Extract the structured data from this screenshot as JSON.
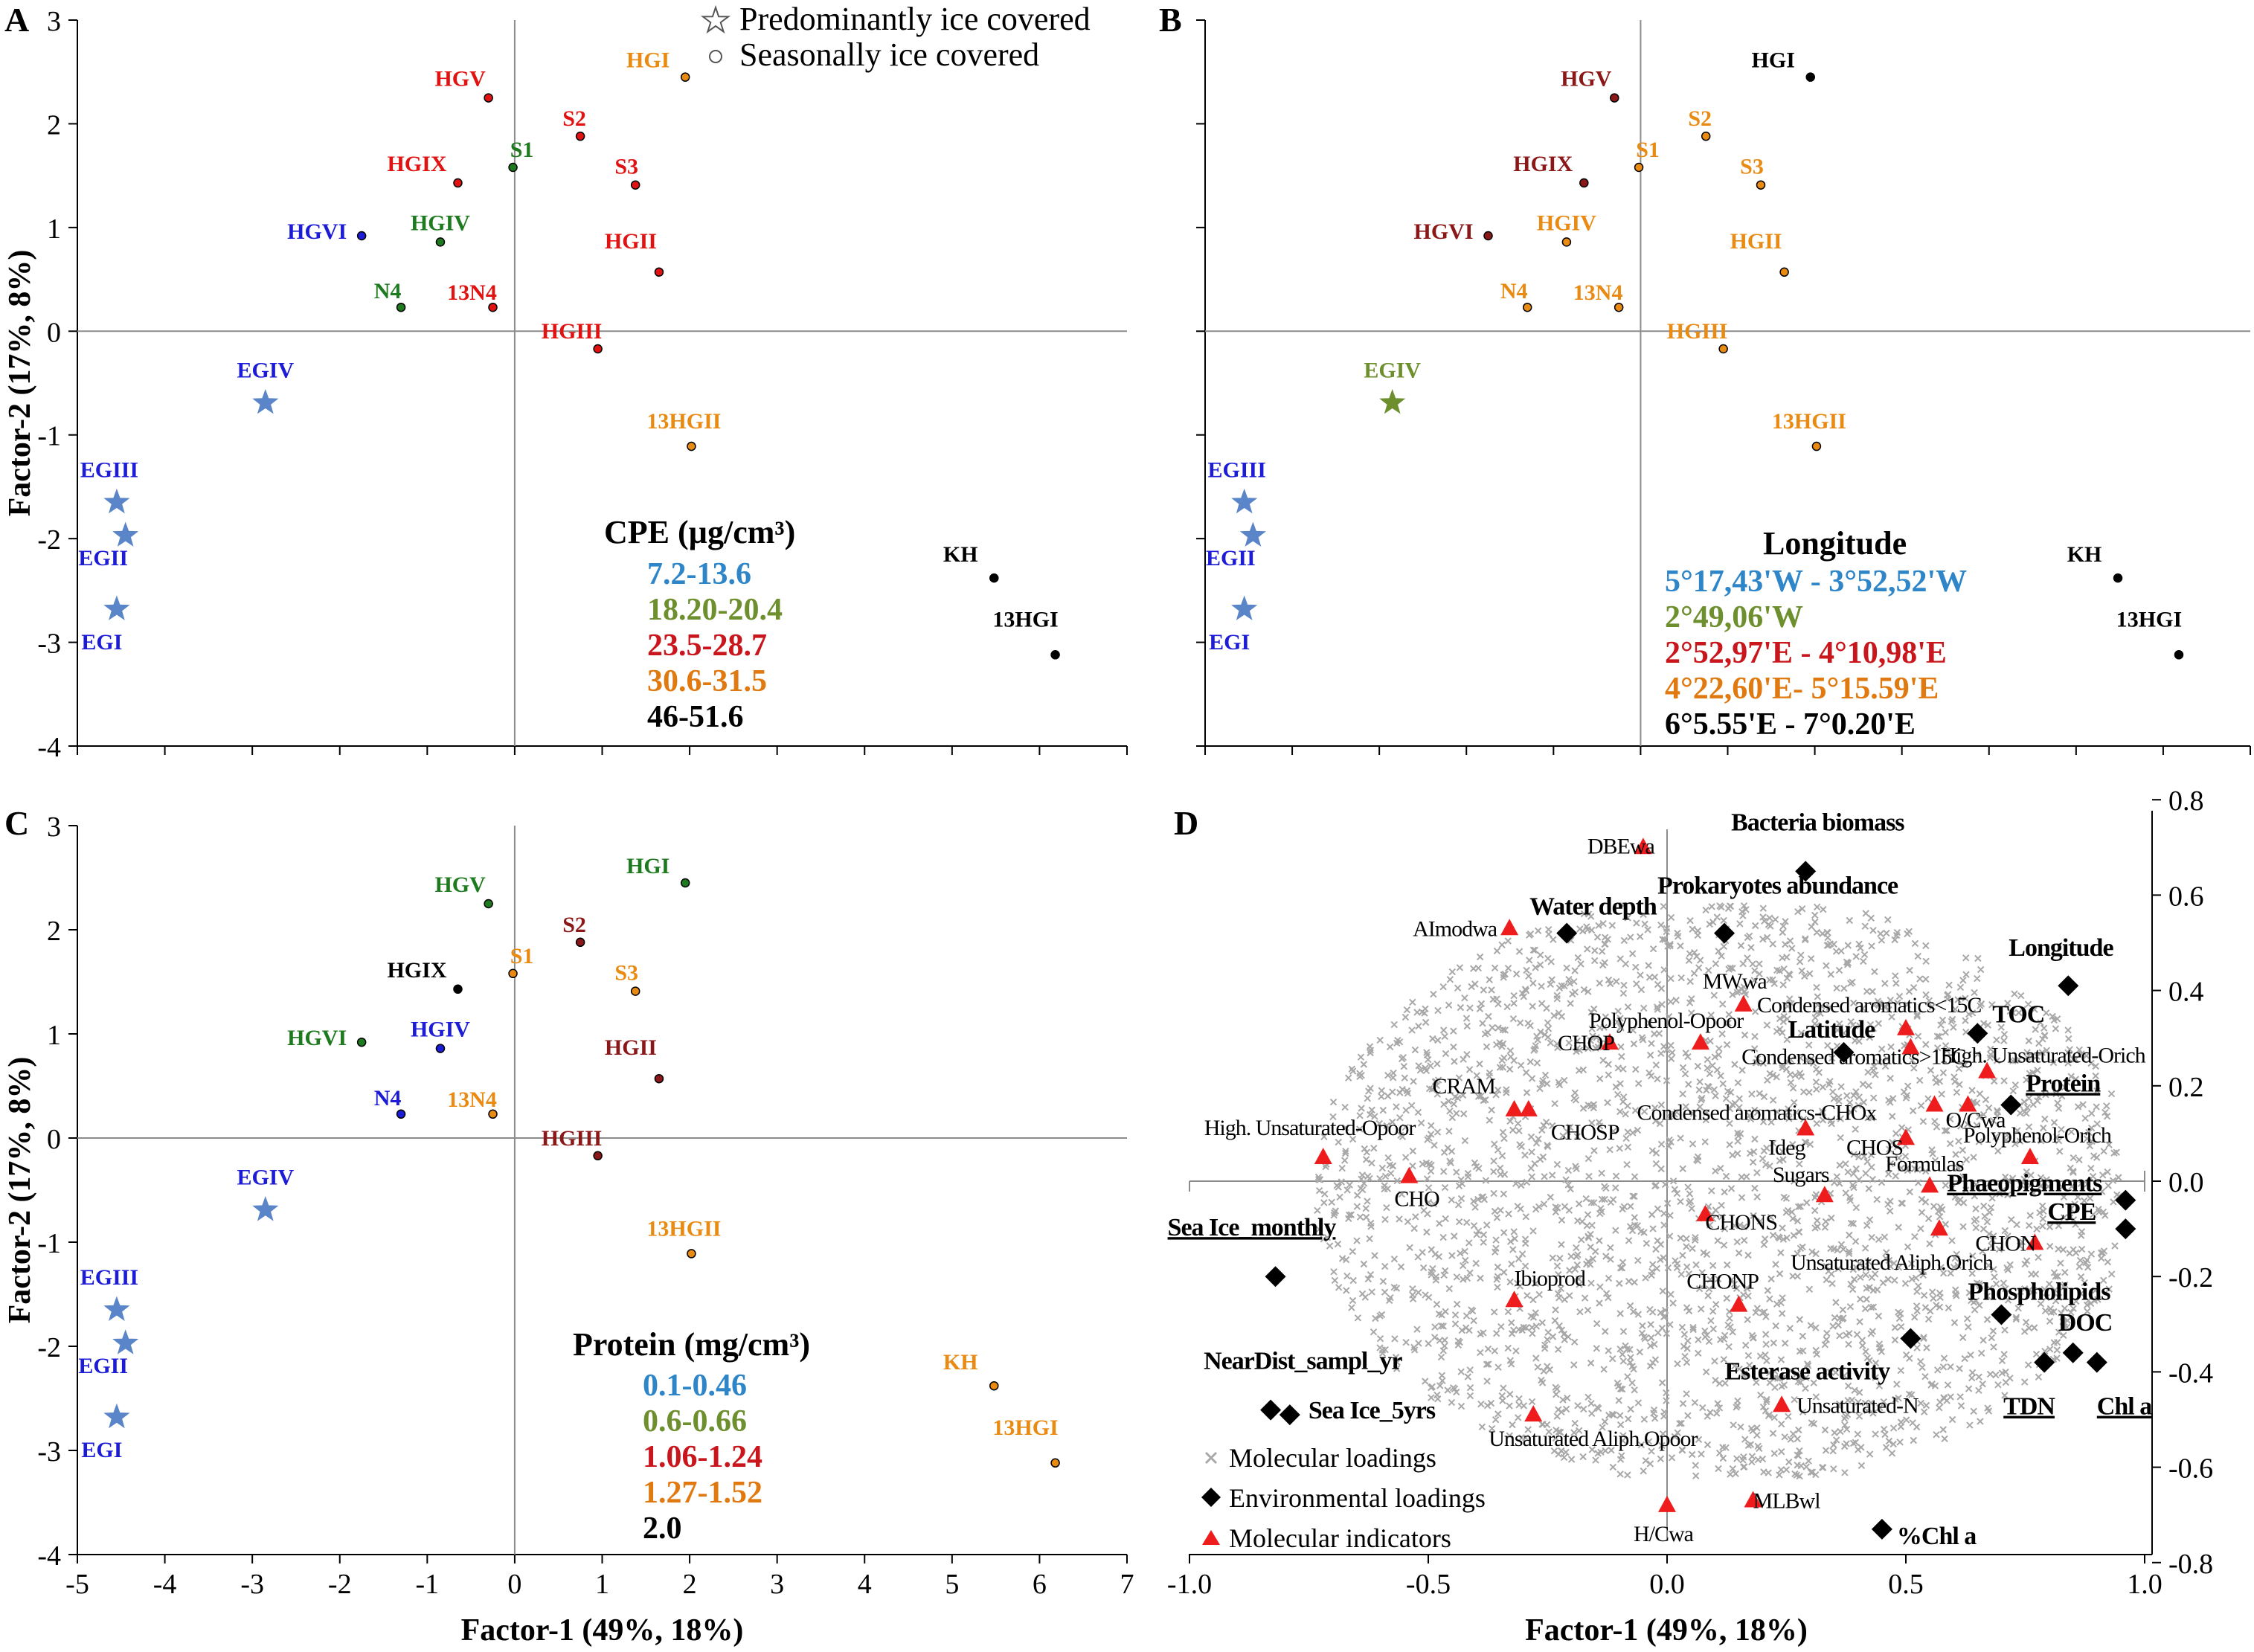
{
  "colors": {
    "blue": "#1c1cd6",
    "green": "#1e7a1e",
    "red": "#e01212",
    "orange": "#e98a12",
    "black": "#000000",
    "darkred": "#8b1818",
    "star": "#5a85c8",
    "olive": "#6e8f2e",
    "legend_blue": "#2e86c8",
    "legend_green": "#6e8f2e",
    "legend_red": "#c8161c",
    "legend_orange": "#e07a10",
    "cloud": "#a8a8a8",
    "triangle": "#ee1c1c",
    "diamond": "#000000"
  },
  "chart_data": [
    {
      "panel": "A",
      "type": "scatter",
      "xlim": [
        -5,
        7
      ],
      "ylim": [
        -4,
        3
      ],
      "xticks": [
        "-5",
        "-4",
        "-3",
        "-2",
        "-1",
        "0",
        "1",
        "2",
        "3",
        "4",
        "5",
        "6",
        "7"
      ],
      "yticks": [
        "3",
        "2",
        "1",
        "0",
        "-1",
        "-2",
        "-3",
        "-4"
      ],
      "ylabel": "Factor-2 (17%, 8%)",
      "xlabel": "",
      "shape_legend": {
        "star_label": "Predominantly ice covered",
        "circle_label": "Seasonally ice covered"
      },
      "legend_title": "CPE (µg/cm³)",
      "legend": [
        {
          "label": "7.2-13.6",
          "color": "legend_blue"
        },
        {
          "label": "18.20-20.4",
          "color": "legend_green"
        },
        {
          "label": "23.5-28.7",
          "color": "legend_red"
        },
        {
          "label": "30.6-31.5",
          "color": "legend_orange"
        },
        {
          "label": "46-51.6",
          "color": "legend_black"
        }
      ],
      "points": [
        {
          "label": "HGV",
          "x": -0.3,
          "y": 2.25,
          "shape": "circle",
          "color": "red"
        },
        {
          "label": "HGI",
          "x": 1.95,
          "y": 2.45,
          "shape": "circle",
          "color": "orange"
        },
        {
          "label": "S2",
          "x": 0.75,
          "y": 1.88,
          "shape": "circle",
          "color": "red"
        },
        {
          "label": "S1",
          "x": -0.02,
          "y": 1.58,
          "shape": "circle",
          "color": "green"
        },
        {
          "label": "HGIX",
          "x": -0.65,
          "y": 1.43,
          "shape": "circle",
          "color": "red"
        },
        {
          "label": "S3",
          "x": 1.38,
          "y": 1.41,
          "shape": "circle",
          "color": "red"
        },
        {
          "label": "HGVI",
          "x": -1.75,
          "y": 0.92,
          "shape": "circle",
          "color": "blue"
        },
        {
          "label": "HGIV",
          "x": -0.85,
          "y": 0.86,
          "shape": "circle",
          "color": "green"
        },
        {
          "label": "HGII",
          "x": 1.65,
          "y": 0.57,
          "shape": "circle",
          "color": "red"
        },
        {
          "label": "N4",
          "x": -1.3,
          "y": 0.23,
          "shape": "circle",
          "color": "green"
        },
        {
          "label": "13N4",
          "x": -0.25,
          "y": 0.23,
          "shape": "circle",
          "color": "red"
        },
        {
          "label": "HGIII",
          "x": 0.95,
          "y": -0.17,
          "shape": "circle",
          "color": "red"
        },
        {
          "label": "EGIV",
          "x": -2.85,
          "y": -0.69,
          "shape": "star",
          "color": "blue"
        },
        {
          "label": "13HGII",
          "x": 2.02,
          "y": -1.11,
          "shape": "circle",
          "color": "orange"
        },
        {
          "label": "EGIII",
          "x": -4.55,
          "y": -1.65,
          "shape": "star",
          "color": "blue"
        },
        {
          "label": "EGII",
          "x": -4.45,
          "y": -1.97,
          "shape": "star",
          "color": "blue"
        },
        {
          "label": "EGI",
          "x": -4.55,
          "y": -2.68,
          "shape": "star",
          "color": "blue"
        },
        {
          "label": "KH",
          "x": 5.48,
          "y": -2.38,
          "shape": "circle",
          "color": "black"
        },
        {
          "label": "13HGI",
          "x": 6.18,
          "y": -3.12,
          "shape": "circle",
          "color": "black"
        }
      ]
    },
    {
      "panel": "B",
      "type": "scatter",
      "xlim": [
        -5,
        7
      ],
      "ylim": [
        -4,
        3
      ],
      "legend_title": "Longitude",
      "legend": [
        {
          "label": "5°17,43'W - 3°52,52'W",
          "color": "legend_blue"
        },
        {
          "label": "2°49,06'W",
          "color": "legend_green"
        },
        {
          "label": "2°52,97'E - 4°10,98'E",
          "color": "legend_red"
        },
        {
          "label": "4°22,60'E- 5°15.59'E",
          "color": "legend_orange"
        },
        {
          "label": "6°5.55'E - 7°0.20'E",
          "color": "legend_black"
        }
      ],
      "points": [
        {
          "label": "HGI",
          "x": 1.95,
          "y": 2.45,
          "shape": "circle",
          "color": "black"
        },
        {
          "label": "HGV",
          "x": -0.3,
          "y": 2.25,
          "shape": "circle",
          "color": "darkred"
        },
        {
          "label": "S2",
          "x": 0.75,
          "y": 1.88,
          "shape": "circle",
          "color": "orange"
        },
        {
          "label": "S1",
          "x": -0.02,
          "y": 1.58,
          "shape": "circle",
          "color": "orange"
        },
        {
          "label": "HGIX",
          "x": -0.65,
          "y": 1.43,
          "shape": "circle",
          "color": "darkred"
        },
        {
          "label": "S3",
          "x": 1.38,
          "y": 1.41,
          "shape": "circle",
          "color": "orange"
        },
        {
          "label": "HGVI",
          "x": -1.75,
          "y": 0.92,
          "shape": "circle",
          "color": "darkred"
        },
        {
          "label": "HGIV",
          "x": -0.85,
          "y": 0.86,
          "shape": "circle",
          "color": "orange"
        },
        {
          "label": "HGII",
          "x": 1.65,
          "y": 0.57,
          "shape": "circle",
          "color": "orange"
        },
        {
          "label": "N4",
          "x": -1.3,
          "y": 0.23,
          "shape": "circle",
          "color": "orange"
        },
        {
          "label": "13N4",
          "x": -0.25,
          "y": 0.23,
          "shape": "circle",
          "color": "orange"
        },
        {
          "label": "HGIII",
          "x": 0.95,
          "y": -0.17,
          "shape": "circle",
          "color": "orange"
        },
        {
          "label": "EGIV",
          "x": -2.85,
          "y": -0.69,
          "shape": "star",
          "color": "olive"
        },
        {
          "label": "13HGII",
          "x": 2.02,
          "y": -1.11,
          "shape": "circle",
          "color": "orange"
        },
        {
          "label": "EGIII",
          "x": -4.55,
          "y": -1.65,
          "shape": "star",
          "color": "blue"
        },
        {
          "label": "EGII",
          "x": -4.45,
          "y": -1.97,
          "shape": "star",
          "color": "blue"
        },
        {
          "label": "EGI",
          "x": -4.55,
          "y": -2.68,
          "shape": "star",
          "color": "blue"
        },
        {
          "label": "KH",
          "x": 5.48,
          "y": -2.38,
          "shape": "circle",
          "color": "black"
        },
        {
          "label": "13HGI",
          "x": 6.18,
          "y": -3.12,
          "shape": "circle",
          "color": "black"
        }
      ]
    },
    {
      "panel": "C",
      "type": "scatter",
      "xlim": [
        -5,
        7
      ],
      "ylim": [
        -4,
        3
      ],
      "xticks": [
        "-5",
        "-4",
        "-3",
        "-2",
        "-1",
        "0",
        "1",
        "2",
        "3",
        "4",
        "5",
        "6",
        "7"
      ],
      "yticks": [
        "3",
        "2",
        "1",
        "0",
        "-1",
        "-2",
        "-3",
        "-4"
      ],
      "ylabel": "Factor-2 (17%, 8%)",
      "xlabel": "Factor-1 (49%, 18%)",
      "legend_title": "Protein (mg/cm³)",
      "legend": [
        {
          "label": "0.1-0.46",
          "color": "legend_blue"
        },
        {
          "label": "0.6-0.66",
          "color": "legend_green"
        },
        {
          "label": "1.06-1.24",
          "color": "legend_red"
        },
        {
          "label": "1.27-1.52",
          "color": "legend_orange"
        },
        {
          "label": "2.0",
          "color": "legend_black"
        }
      ],
      "points": [
        {
          "label": "HGI",
          "x": 1.95,
          "y": 2.45,
          "shape": "circle",
          "color": "green"
        },
        {
          "label": "HGV",
          "x": -0.3,
          "y": 2.25,
          "shape": "circle",
          "color": "green"
        },
        {
          "label": "S2",
          "x": 0.75,
          "y": 1.88,
          "shape": "circle",
          "color": "darkred"
        },
        {
          "label": "HGIX",
          "x": -0.65,
          "y": 1.43,
          "shape": "circle",
          "color": "black"
        },
        {
          "label": "S1",
          "x": -0.02,
          "y": 1.58,
          "shape": "circle",
          "color": "orange"
        },
        {
          "label": "S3",
          "x": 1.38,
          "y": 1.41,
          "shape": "circle",
          "color": "orange"
        },
        {
          "label": "HGVI",
          "x": -1.75,
          "y": 0.92,
          "shape": "circle",
          "color": "green"
        },
        {
          "label": "HGIV",
          "x": -0.85,
          "y": 0.86,
          "shape": "circle",
          "color": "blue"
        },
        {
          "label": "HGII",
          "x": 1.65,
          "y": 0.57,
          "shape": "circle",
          "color": "darkred"
        },
        {
          "label": "N4",
          "x": -1.3,
          "y": 0.23,
          "shape": "circle",
          "color": "blue"
        },
        {
          "label": "13N4",
          "x": -0.25,
          "y": 0.23,
          "shape": "circle",
          "color": "orange"
        },
        {
          "label": "HGIII",
          "x": 0.95,
          "y": -0.17,
          "shape": "circle",
          "color": "darkred"
        },
        {
          "label": "EGIV",
          "x": -2.85,
          "y": -0.69,
          "shape": "star",
          "color": "blue"
        },
        {
          "label": "13HGII",
          "x": 2.02,
          "y": -1.11,
          "shape": "circle",
          "color": "orange"
        },
        {
          "label": "EGIII",
          "x": -4.55,
          "y": -1.65,
          "shape": "star",
          "color": "blue"
        },
        {
          "label": "EGII",
          "x": -4.45,
          "y": -1.97,
          "shape": "star",
          "color": "blue"
        },
        {
          "label": "EGI",
          "x": -4.55,
          "y": -2.68,
          "shape": "star",
          "color": "blue"
        },
        {
          "label": "KH",
          "x": 5.48,
          "y": -2.38,
          "shape": "circle",
          "color": "orange"
        },
        {
          "label": "13HGI",
          "x": 6.18,
          "y": -3.12,
          "shape": "circle",
          "color": "orange"
        }
      ]
    },
    {
      "panel": "D",
      "type": "scatter",
      "xlim": [
        -1.0,
        1.0
      ],
      "ylim": [
        -0.8,
        0.8
      ],
      "xticks": [
        "-1.0",
        "-0.5",
        "0.0",
        "0.5",
        "1.0"
      ],
      "yticks": [
        "0.8",
        "0.6",
        "0.4",
        "0.2",
        "0.0",
        "-0.2",
        "-0.4",
        "-0.6",
        "-0.8"
      ],
      "xlabel": "Factor-1 (49%, 18%)",
      "legend": [
        {
          "label": "Molecular loadings",
          "marker": "cross"
        },
        {
          "label": "Environmental loadings",
          "marker": "diamond"
        },
        {
          "label": "Molecular indicators",
          "marker": "triangle"
        }
      ],
      "environmental_loadings": [
        {
          "label": "Bacteria biomass",
          "x": 0.29,
          "y": 0.65,
          "underline": false
        },
        {
          "label": "Prokaryotes abundance",
          "x": 0.12,
          "y": 0.52,
          "underline": false
        },
        {
          "label": "Water depth",
          "x": -0.21,
          "y": 0.52,
          "underline": false
        },
        {
          "label": "Longitude",
          "x": 0.84,
          "y": 0.41,
          "underline": false
        },
        {
          "label": "TOC",
          "x": 0.65,
          "y": 0.31,
          "underline": false
        },
        {
          "label": "Latitude",
          "x": 0.37,
          "y": 0.27,
          "underline": false
        },
        {
          "label": "Protein",
          "x": 0.72,
          "y": 0.16,
          "underline": true
        },
        {
          "label": "Phaeopigments",
          "x": 0.96,
          "y": -0.04,
          "underline": true
        },
        {
          "label": "CPE",
          "x": 0.96,
          "y": -0.1,
          "underline": true
        },
        {
          "label": "Sea Ice_monthly",
          "x": -0.82,
          "y": -0.2,
          "underline": true
        },
        {
          "label": "Phospholipids",
          "x": 0.7,
          "y": -0.28,
          "underline": false
        },
        {
          "label": "DOC",
          "x": 0.85,
          "y": -0.36,
          "underline": false
        },
        {
          "label": "Esterase activity",
          "x": 0.51,
          "y": -0.33,
          "underline": false
        },
        {
          "label": "TDN",
          "x": 0.79,
          "y": -0.38,
          "underline": true
        },
        {
          "label": "Chl a",
          "x": 0.9,
          "y": -0.38,
          "underline": true
        },
        {
          "label": "NearDist_sampl_yr",
          "x": -0.83,
          "y": -0.48,
          "underline": false
        },
        {
          "label": "Sea Ice_5yrs",
          "x": -0.79,
          "y": -0.49,
          "underline": false
        },
        {
          "label": "%Chl a",
          "x": 0.45,
          "y": -0.73,
          "underline": false
        }
      ],
      "molecular_indicators": [
        {
          "label": "DBEwa",
          "x": -0.05,
          "y": 0.7
        },
        {
          "label": "AImodwa",
          "x": -0.33,
          "y": 0.53
        },
        {
          "label": "MWwa",
          "x": 0.16,
          "y": 0.37
        },
        {
          "label": "Condensed aromatics<15C",
          "x": 0.5,
          "y": 0.32
        },
        {
          "label": "Polyphenol-Opoor",
          "x": 0.07,
          "y": 0.29
        },
        {
          "label": "CHOP",
          "x": -0.12,
          "y": 0.29
        },
        {
          "label": "High. Unsaturated-Orich",
          "x": 0.51,
          "y": 0.28
        },
        {
          "label": "CRAM",
          "x": -0.32,
          "y": 0.15
        },
        {
          "label": "CHOSP",
          "x": -0.29,
          "y": 0.15
        },
        {
          "label": "Condensed aromatics>15C",
          "x": 0.67,
          "y": 0.23
        },
        {
          "label": "Condensed aromatics-CHOx",
          "x": 0.56,
          "y": 0.16
        },
        {
          "label": "O/Cwa",
          "x": 0.63,
          "y": 0.16
        },
        {
          "label": "Ideg",
          "x": 0.29,
          "y": 0.11
        },
        {
          "label": "CHOS",
          "x": 0.5,
          "y": 0.09
        },
        {
          "label": "High. Unsaturated-Opoor",
          "x": -0.72,
          "y": 0.05
        },
        {
          "label": "Polyphenol-Orich",
          "x": 0.76,
          "y": 0.05
        },
        {
          "label": "CHO",
          "x": -0.54,
          "y": 0.01
        },
        {
          "label": "Formulas",
          "x": 0.55,
          "y": -0.01
        },
        {
          "label": "Sugars",
          "x": 0.33,
          "y": -0.03
        },
        {
          "label": "CHONS",
          "x": 0.08,
          "y": -0.07
        },
        {
          "label": "CHON",
          "x": 0.77,
          "y": -0.13
        },
        {
          "label": "Unsaturated Aliph.Orich",
          "x": 0.57,
          "y": -0.1
        },
        {
          "label": "Ibioprod",
          "x": -0.32,
          "y": -0.25
        },
        {
          "label": "CHONP",
          "x": 0.15,
          "y": -0.26
        },
        {
          "label": "Unsaturated-N",
          "x": 0.24,
          "y": -0.47
        },
        {
          "label": "Unsaturated Aliph.Opoor",
          "x": -0.28,
          "y": -0.49
        },
        {
          "label": "MLBwl",
          "x": 0.18,
          "y": -0.67
        },
        {
          "label": "H/Cwa",
          "x": 0.0,
          "y": -0.68
        }
      ]
    }
  ]
}
